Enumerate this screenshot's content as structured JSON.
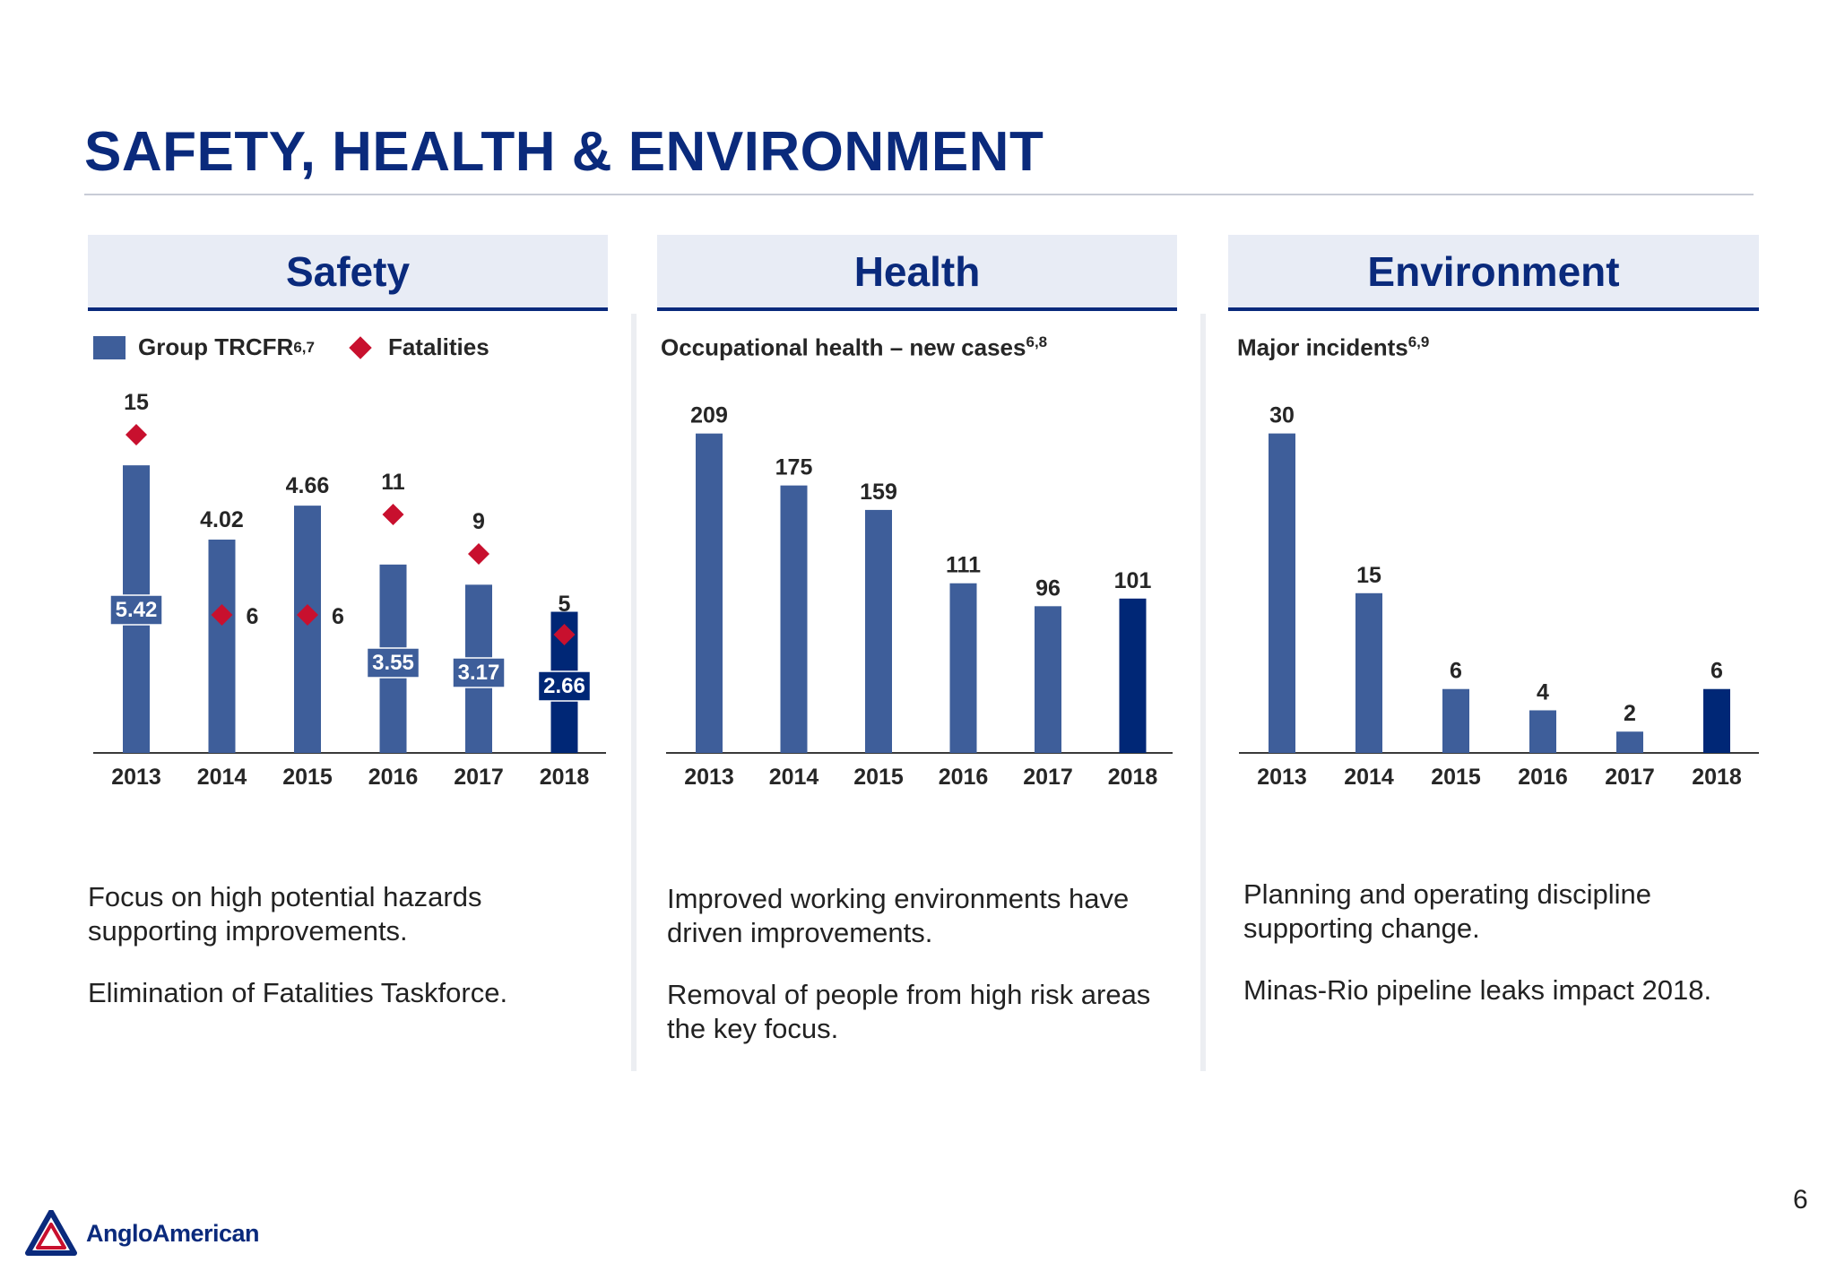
{
  "page": {
    "title": "SAFETY, HEALTH & ENVIRONMENT",
    "page_number": "6",
    "logo_text": "AngloAmerican"
  },
  "colors": {
    "title": "#0a2a7c",
    "bar": "#3e5e9a",
    "bar_highlight": "#002776",
    "fatalities": "#c8102e",
    "header_bg": "#e8ecf5"
  },
  "panels": {
    "safety": {
      "header": "Safety",
      "legend_bar": "Group TRCFR",
      "legend_bar_sup": "6,7",
      "legend_marker": "Fatalities",
      "notes": [
        "Focus on high potential hazards supporting improvements.",
        "Elimination of Fatalities Taskforce."
      ]
    },
    "health": {
      "header": "Health",
      "subtitle": "Occupational health – new cases",
      "subtitle_sup": "6,8",
      "notes": [
        "Improved working environments have driven improvements.",
        "Removal of people from high risk areas the key focus."
      ]
    },
    "environment": {
      "header": "Environment",
      "subtitle": "Major incidents",
      "subtitle_sup": "6,9",
      "notes": [
        "Planning and operating discipline supporting change.",
        "Minas-Rio pipeline leaks impact 2018."
      ]
    }
  },
  "chart_data": [
    {
      "type": "bar",
      "title": "",
      "categories": [
        "2013",
        "2014",
        "2015",
        "2016",
        "2017",
        "2018"
      ],
      "series": [
        {
          "name": "Group TRCFR",
          "type": "bar",
          "values": [
            5.42,
            4.02,
            4.66,
            3.55,
            3.17,
            2.66
          ],
          "labels": [
            "5.42",
            "4.02",
            "4.66",
            "3.55",
            "3.17",
            "2.66"
          ]
        },
        {
          "name": "Fatalities",
          "type": "scatter",
          "values": [
            15,
            6,
            6,
            11,
            9,
            5
          ],
          "labels": [
            "15",
            "6",
            "6",
            "11",
            "9",
            "5"
          ]
        }
      ],
      "highlight_index": 5,
      "legend": "top-left",
      "grid": false
    },
    {
      "type": "bar",
      "title": "",
      "categories": [
        "2013",
        "2014",
        "2015",
        "2016",
        "2017",
        "2018"
      ],
      "series": [
        {
          "name": "Occupational health – new cases",
          "values": [
            209,
            175,
            159,
            111,
            96,
            101
          ],
          "labels": [
            "209",
            "175",
            "159",
            "111",
            "96",
            "101"
          ]
        }
      ],
      "highlight_index": 5,
      "grid": false
    },
    {
      "type": "bar",
      "title": "",
      "categories": [
        "2013",
        "2014",
        "2015",
        "2016",
        "2017",
        "2018"
      ],
      "series": [
        {
          "name": "Major incidents",
          "values": [
            30,
            15,
            6,
            4,
            2,
            6
          ],
          "labels": [
            "30",
            "15",
            "6",
            "4",
            "2",
            "6"
          ]
        }
      ],
      "highlight_index": 5,
      "grid": false
    }
  ]
}
